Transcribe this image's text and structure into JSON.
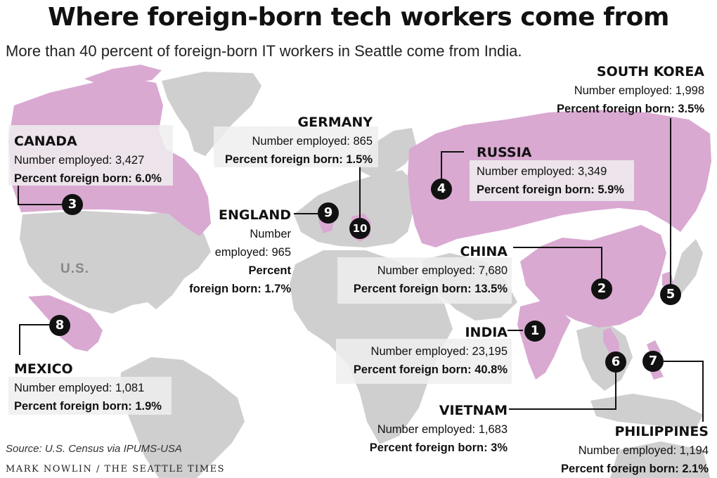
{
  "title": "Where foreign-born tech workers come from",
  "subtitle": "More than 40 percent of foreign-born IT workers in Seattle come from India.",
  "map_label_us": "U.S.",
  "source": "Source: U.S. Census via IPUMS-USA",
  "credit": "MARK NOWLIN / THE SEATTLE TIMES",
  "colors": {
    "highlight": "#d9a9d2",
    "land": "#cfcfcf",
    "badge": "#111111",
    "leader": "#111111"
  },
  "countries": [
    {
      "rank": "1",
      "name": "INDIA",
      "employed_label": "Number employed: 23,195",
      "pct_label": "Percent foreign born: 40.8%",
      "employed": 23195,
      "percent": 40.8
    },
    {
      "rank": "2",
      "name": "CHINA",
      "employed_label": "Number employed: 7,680",
      "pct_label": "Percent foreign born: 13.5%",
      "employed": 7680,
      "percent": 13.5
    },
    {
      "rank": "3",
      "name": "CANADA",
      "employed_label": "Number employed: 3,427",
      "pct_label": "Percent foreign born: 6.0%",
      "employed": 3427,
      "percent": 6.0
    },
    {
      "rank": "4",
      "name": "RUSSIA",
      "employed_label": "Number employed: 3,349",
      "pct_label": "Percent foreign born: 5.9%",
      "employed": 3349,
      "percent": 5.9
    },
    {
      "rank": "5",
      "name": "SOUTH KOREA",
      "employed_label": "Number employed: 1,998",
      "pct_label": "Percent foreign born: 3.5%",
      "employed": 1998,
      "percent": 3.5
    },
    {
      "rank": "6",
      "name": "VIETNAM",
      "employed_label": "Number employed: 1,683",
      "pct_label": "Percent foreign born: 3%",
      "employed": 1683,
      "percent": 3
    },
    {
      "rank": "7",
      "name": "PHILIPPINES",
      "employed_label": "Number employed: 1,194",
      "pct_label": "Percent foreign born: 2.1%",
      "employed": 1194,
      "percent": 2.1
    },
    {
      "rank": "8",
      "name": "MEXICO",
      "employed_label": "Number employed: 1,081",
      "pct_label": "Percent foreign born: 1.9%",
      "employed": 1081,
      "percent": 1.9
    },
    {
      "rank": "9",
      "name": "ENGLAND",
      "employed_label_1": "Number",
      "employed_label_2": "employed: 965",
      "pct_label_1": "Percent",
      "pct_label_2": "foreign born: 1.7%",
      "employed": 965,
      "percent": 1.7
    },
    {
      "rank": "10",
      "name": "GERMANY",
      "employed_label": "Number employed: 865",
      "pct_label": "Percent foreign born: 1.5%",
      "employed": 865,
      "percent": 1.5
    }
  ]
}
